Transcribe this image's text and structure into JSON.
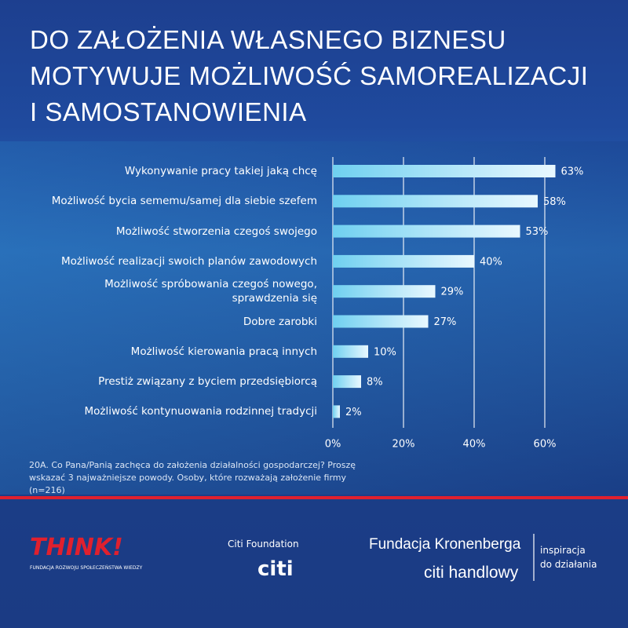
{
  "chart_data": {
    "type": "hbar",
    "title": [
      "DO ZAŁOŻENIA WŁASNEGO BIZNESU",
      "MOTYWUJE MOŻLIWOŚĆ SAMOREALIZACJI",
      "I SAMOSTANOWIENIA"
    ],
    "categories": [
      "Wykonywanie pracy takiej jaką chcę",
      "Możliwość bycia sememu/samej dla siebie szefem",
      "Możliwość stworzenia czegoś swojego",
      "Możliwość realizacji swoich planów zawodowych",
      "Możliwość spróbowania czegoś nowego, sprawdzenia się",
      "Dobre zarobki",
      "Możliwość kierowania pracą innych",
      "Prestiż związany z byciem przedsiębiorcą",
      "Możliwość kontynuowania rodzinnej tradycji"
    ],
    "values": [
      63,
      58,
      53,
      40,
      29,
      27,
      10,
      8,
      2
    ],
    "value_labels": [
      "63%",
      "58%",
      "53%",
      "40%",
      "29%",
      "27%",
      "10%",
      "8%",
      "2%"
    ],
    "xlim": [
      0,
      65
    ],
    "xticks": [
      {
        "value": 0,
        "label": "0%"
      },
      {
        "value": 20,
        "label": "20%"
      },
      {
        "value": 40,
        "label": "40%"
      },
      {
        "value": 60,
        "label": "60%"
      }
    ],
    "grid": true,
    "footnote": "20A. Co Pana/Panią zachęca do założenia działalności gospodarczej? Proszę wskazać 3 najważniejsze powody. Osoby, które rozważają założenie firmy (n=216)"
  },
  "logos": {
    "think": "THINK!",
    "think_sub": "FUNDACJA ROZWOJU SPOŁECZEŃSTWA WIEDZY",
    "citi_foundation": "Citi Foundation",
    "citi": "citi",
    "kronenberg": "Fundacja Kronenberga",
    "citi_handlowy": "citi handlowy",
    "tagline_1": "inspiracja",
    "tagline_2": "do działania"
  }
}
